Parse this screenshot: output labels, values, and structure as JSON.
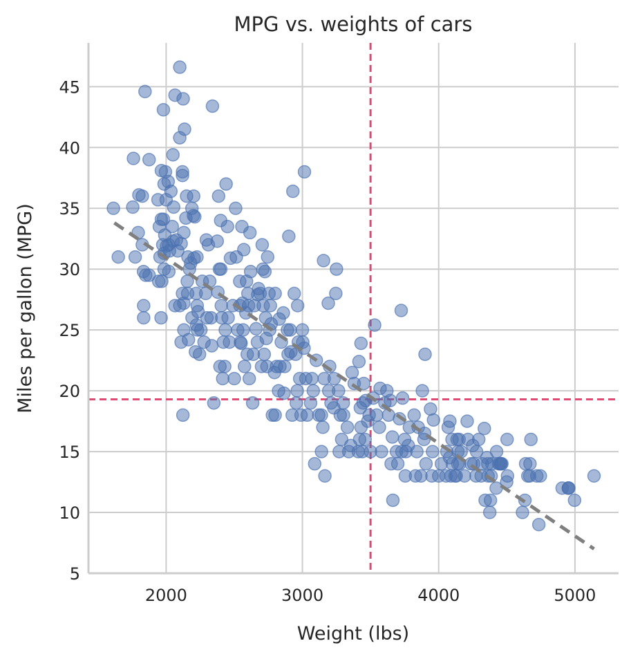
{
  "chart_data": {
    "type": "scatter",
    "title": "MPG vs. weights of cars",
    "xlabel": "Weight (lbs)",
    "ylabel": "Miles per gallon (MPG)",
    "xlim": [
      1430,
      5320
    ],
    "ylim": [
      5,
      48.6
    ],
    "xticks": [
      2000,
      3000,
      4000,
      5000
    ],
    "yticks": [
      5,
      10,
      15,
      20,
      25,
      30,
      35,
      40,
      45
    ],
    "grid": true,
    "legend": "none",
    "colors": {
      "points": "#4c72b0",
      "trend": "#7f7f7f",
      "reference": "#dd4a72",
      "grid": "#cccccc",
      "axis": "#cccccc"
    },
    "reference_lines": {
      "x": 3500,
      "y": 19.3
    },
    "trend_line": {
      "x": [
        1620,
        5140
      ],
      "y": [
        33.8,
        7.0
      ]
    },
    "points": [
      [
        1613,
        35
      ],
      [
        1649,
        31
      ],
      [
        1760,
        39.1
      ],
      [
        1755,
        35.1
      ],
      [
        1773,
        31
      ],
      [
        1795,
        33
      ],
      [
        1800,
        36.1
      ],
      [
        1825,
        36
      ],
      [
        1834,
        29.8
      ],
      [
        1825,
        32
      ],
      [
        1845,
        44.6
      ],
      [
        1835,
        27
      ],
      [
        1835,
        26
      ],
      [
        1850,
        29.5
      ],
      [
        1875,
        39
      ],
      [
        1875,
        29.5
      ],
      [
        1940,
        35.7
      ],
      [
        1945,
        29
      ],
      [
        1950,
        33.5
      ],
      [
        1955,
        31
      ],
      [
        1963,
        26
      ],
      [
        1965,
        38.1
      ],
      [
        1965,
        34.1
      ],
      [
        1968,
        29
      ],
      [
        1975,
        32
      ],
      [
        1980,
        43.1
      ],
      [
        1985,
        37
      ],
      [
        1980,
        34.1
      ],
      [
        1985,
        31.3
      ],
      [
        1985,
        30
      ],
      [
        1990,
        32.8
      ],
      [
        1995,
        38
      ],
      [
        2000,
        35.7
      ],
      [
        2003,
        31.9
      ],
      [
        2015,
        37.2
      ],
      [
        2019,
        32
      ],
      [
        2020,
        29.8
      ],
      [
        2025,
        31.5
      ],
      [
        2035,
        36.4
      ],
      [
        2045,
        33.5
      ],
      [
        2050,
        39.4
      ],
      [
        2051,
        32.3
      ],
      [
        2055,
        35.1
      ],
      [
        2065,
        44.3
      ],
      [
        2065,
        27
      ],
      [
        2075,
        32.4
      ],
      [
        2085,
        31.5
      ],
      [
        2100,
        46.6
      ],
      [
        2100,
        40.8
      ],
      [
        2100,
        27
      ],
      [
        2110,
        32.1
      ],
      [
        2110,
        24
      ],
      [
        2120,
        37.7
      ],
      [
        2120,
        38
      ],
      [
        2120,
        28
      ],
      [
        2123,
        18
      ],
      [
        2125,
        44
      ],
      [
        2130,
        33
      ],
      [
        2130,
        25
      ],
      [
        2130,
        27.2
      ],
      [
        2135,
        41.5
      ],
      [
        2145,
        34.2
      ],
      [
        2150,
        36
      ],
      [
        2155,
        29
      ],
      [
        2158,
        28
      ],
      [
        2160,
        31
      ],
      [
        2164,
        24.2
      ],
      [
        2171,
        30
      ],
      [
        2180,
        30.5
      ],
      [
        2189,
        35
      ],
      [
        2190,
        26
      ],
      [
        2200,
        34.4
      ],
      [
        2202,
        36
      ],
      [
        2205,
        30.9
      ],
      [
        2210,
        34.3
      ],
      [
        2215,
        23.2
      ],
      [
        2220,
        28
      ],
      [
        2223,
        25.4
      ],
      [
        2226,
        31
      ],
      [
        2228,
        27
      ],
      [
        2230,
        25
      ],
      [
        2234,
        26.5
      ],
      [
        2245,
        23
      ],
      [
        2255,
        25
      ],
      [
        2265,
        29
      ],
      [
        2278,
        24
      ],
      [
        2290,
        28
      ],
      [
        2295,
        32.4
      ],
      [
        2300,
        26
      ],
      [
        2310,
        32
      ],
      [
        2320,
        29
      ],
      [
        2330,
        26
      ],
      [
        2340,
        43.4
      ],
      [
        2335,
        23.7
      ],
      [
        2350,
        19
      ],
      [
        2375,
        32.3
      ],
      [
        2380,
        28.1
      ],
      [
        2385,
        36
      ],
      [
        2391,
        30
      ],
      [
        2395,
        22
      ],
      [
        2400,
        34
      ],
      [
        2401,
        30
      ],
      [
        2405,
        27
      ],
      [
        2408,
        26
      ],
      [
        2415,
        21
      ],
      [
        2420,
        24
      ],
      [
        2430,
        22
      ],
      [
        2434,
        25
      ],
      [
        2440,
        37
      ],
      [
        2450,
        33.5
      ],
      [
        2455,
        26
      ],
      [
        2465,
        24
      ],
      [
        2472,
        30.9
      ],
      [
        2490,
        27
      ],
      [
        2500,
        21
      ],
      [
        2510,
        35
      ],
      [
        2515,
        31
      ],
      [
        2525,
        25
      ],
      [
        2540,
        29
      ],
      [
        2542,
        27
      ],
      [
        2545,
        24
      ],
      [
        2550,
        23.9
      ],
      [
        2556,
        33.5
      ],
      [
        2560,
        27.2
      ],
      [
        2565,
        25
      ],
      [
        2570,
        31.6
      ],
      [
        2575,
        22
      ],
      [
        2585,
        26.4
      ],
      [
        2590,
        29
      ],
      [
        2595,
        23
      ],
      [
        2600,
        28
      ],
      [
        2605,
        27
      ],
      [
        2610,
        21
      ],
      [
        2615,
        33
      ],
      [
        2620,
        29.8
      ],
      [
        2635,
        19
      ],
      [
        2640,
        23
      ],
      [
        2648,
        27
      ],
      [
        2660,
        25.1
      ],
      [
        2670,
        24
      ],
      [
        2672,
        27.9
      ],
      [
        2678,
        28.4
      ],
      [
        2690,
        28
      ],
      [
        2700,
        22
      ],
      [
        2705,
        32
      ],
      [
        2710,
        30
      ],
      [
        2712,
        27
      ],
      [
        2720,
        23
      ],
      [
        2725,
        29.8
      ],
      [
        2730,
        26
      ],
      [
        2735,
        24.3
      ],
      [
        2740,
        22
      ],
      [
        2745,
        31
      ],
      [
        2755,
        28
      ],
      [
        2760,
        25
      ],
      [
        2765,
        27
      ],
      [
        2771,
        25.5
      ],
      [
        2780,
        18
      ],
      [
        2795,
        21.5
      ],
      [
        2800,
        18
      ],
      [
        2800,
        28
      ],
      [
        2810,
        22
      ],
      [
        2825,
        20
      ],
      [
        2830,
        25.9
      ],
      [
        2835,
        22
      ],
      [
        2845,
        24
      ],
      [
        2860,
        26.4
      ],
      [
        2865,
        19.8
      ],
      [
        2870,
        22
      ],
      [
        2890,
        25
      ],
      [
        2895,
        23
      ],
      [
        2900,
        32.7
      ],
      [
        2910,
        25
      ],
      [
        2915,
        23.2
      ],
      [
        2925,
        18
      ],
      [
        2930,
        36.4
      ],
      [
        2940,
        28
      ],
      [
        2950,
        23
      ],
      [
        2955,
        19
      ],
      [
        2962,
        20
      ],
      [
        2965,
        27
      ],
      [
        2970,
        24
      ],
      [
        2980,
        21
      ],
      [
        2990,
        18
      ],
      [
        3000,
        25
      ],
      [
        3003,
        24
      ],
      [
        3012,
        23.5
      ],
      [
        3015,
        38
      ],
      [
        3025,
        21
      ],
      [
        3035,
        18
      ],
      [
        3060,
        19
      ],
      [
        3070,
        21
      ],
      [
        3080,
        20
      ],
      [
        3090,
        14
      ],
      [
        3102,
        22.5
      ],
      [
        3120,
        18
      ],
      [
        3139,
        18
      ],
      [
        3140,
        15
      ],
      [
        3150,
        17
      ],
      [
        3155,
        30.7
      ],
      [
        3160,
        21
      ],
      [
        3165,
        13
      ],
      [
        3190,
        27.2
      ],
      [
        3193,
        20
      ],
      [
        3200,
        22
      ],
      [
        3210,
        19
      ],
      [
        3230,
        18.6
      ],
      [
        3233,
        21
      ],
      [
        3245,
        28
      ],
      [
        3250,
        30
      ],
      [
        3265,
        20
      ],
      [
        3270,
        15
      ],
      [
        3278,
        18
      ],
      [
        3288,
        16
      ],
      [
        3300,
        19
      ],
      [
        3302,
        18
      ],
      [
        3330,
        17
      ],
      [
        3340,
        15
      ],
      [
        3355,
        15.5
      ],
      [
        3365,
        21.5
      ],
      [
        3380,
        20.6
      ],
      [
        3410,
        15
      ],
      [
        3415,
        22.4
      ],
      [
        3420,
        16
      ],
      [
        3425,
        18.6
      ],
      [
        3430,
        23.9
      ],
      [
        3430,
        17
      ],
      [
        3440,
        15
      ],
      [
        3445,
        19
      ],
      [
        3450,
        20.6
      ],
      [
        3460,
        16
      ],
      [
        3465,
        19.2
      ],
      [
        3480,
        17.5
      ],
      [
        3490,
        18
      ],
      [
        3500,
        15
      ],
      [
        3520,
        19.4
      ],
      [
        3530,
        25.4
      ],
      [
        3545,
        18
      ],
      [
        3565,
        17
      ],
      [
        3570,
        20.2
      ],
      [
        3580,
        15
      ],
      [
        3605,
        19
      ],
      [
        3620,
        20
      ],
      [
        3632,
        18
      ],
      [
        3645,
        19.2
      ],
      [
        3651,
        14
      ],
      [
        3660,
        16.2
      ],
      [
        3664,
        11
      ],
      [
        3690,
        15
      ],
      [
        3700,
        14
      ],
      [
        3712,
        17.7
      ],
      [
        3725,
        26.6
      ],
      [
        3730,
        15
      ],
      [
        3735,
        19.4
      ],
      [
        3750,
        16
      ],
      [
        3755,
        13
      ],
      [
        3760,
        15
      ],
      [
        3777,
        15.5
      ],
      [
        3785,
        17
      ],
      [
        3820,
        18
      ],
      [
        3830,
        13
      ],
      [
        3840,
        15
      ],
      [
        3850,
        17
      ],
      [
        3870,
        13
      ],
      [
        3880,
        20
      ],
      [
        3892,
        16
      ],
      [
        3897,
        16.5
      ],
      [
        3900,
        23
      ],
      [
        3907,
        14
      ],
      [
        3940,
        18.5
      ],
      [
        3950,
        13
      ],
      [
        3955,
        15
      ],
      [
        3962,
        17.6
      ],
      [
        4000,
        13
      ],
      [
        4020,
        14
      ],
      [
        4054,
        13
      ],
      [
        4060,
        15
      ],
      [
        4070,
        17
      ],
      [
        4080,
        14.5
      ],
      [
        4082,
        17.5
      ],
      [
        4090,
        13
      ],
      [
        4098,
        16
      ],
      [
        4100,
        14
      ],
      [
        4120,
        13
      ],
      [
        4129,
        13
      ],
      [
        4135,
        16
      ],
      [
        4140,
        14
      ],
      [
        4141,
        15
      ],
      [
        4150,
        16
      ],
      [
        4154,
        14
      ],
      [
        4165,
        15
      ],
      [
        4190,
        13
      ],
      [
        4209,
        17.5
      ],
      [
        4215,
        16
      ],
      [
        4237,
        14
      ],
      [
        4250,
        15.5
      ],
      [
        4257,
        14
      ],
      [
        4274,
        13
      ],
      [
        4278,
        15
      ],
      [
        4294,
        16
      ],
      [
        4312,
        13
      ],
      [
        4320,
        14
      ],
      [
        4335,
        16.9
      ],
      [
        4341,
        11
      ],
      [
        4354,
        14.5
      ],
      [
        4360,
        14
      ],
      [
        4363,
        13
      ],
      [
        4375,
        10
      ],
      [
        4380,
        11
      ],
      [
        4385,
        13
      ],
      [
        4390,
        14
      ],
      [
        4422,
        12
      ],
      [
        4425,
        15
      ],
      [
        4440,
        14
      ],
      [
        4450,
        14
      ],
      [
        4456,
        14
      ],
      [
        4457,
        14
      ],
      [
        4464,
        14
      ],
      [
        4499,
        12.5
      ],
      [
        4502,
        16
      ],
      [
        4505,
        13
      ],
      [
        4615,
        10
      ],
      [
        4633,
        11
      ],
      [
        4638,
        14
      ],
      [
        4654,
        13
      ],
      [
        4668,
        13
      ],
      [
        4670,
        14
      ],
      [
        4677,
        16
      ],
      [
        4720,
        13
      ],
      [
        4735,
        9
      ],
      [
        4746,
        13
      ],
      [
        4906,
        12
      ],
      [
        4951,
        12
      ],
      [
        4952,
        12
      ],
      [
        4955,
        12
      ],
      [
        4997,
        11
      ],
      [
        5140,
        13
      ]
    ]
  }
}
